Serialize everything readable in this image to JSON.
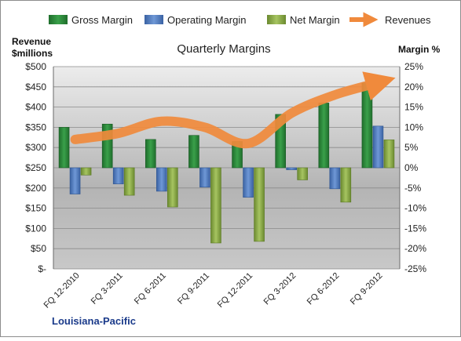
{
  "chart_data": {
    "type": "bar",
    "title": "Quarterly Margins",
    "company": "Louisiana-Pacific",
    "left_axis_label_line1": "Revenue",
    "left_axis_label_line2": "$millions",
    "right_axis_label": "Margin %",
    "categories": [
      "FQ 12-2010",
      "FQ 3-2011",
      "FQ 6-2011",
      "FQ 9-2011",
      "FQ 12-2011",
      "FQ 3-2012",
      "FQ 6-2012",
      "FQ 9-2012"
    ],
    "left_ylim": [
      0,
      500
    ],
    "right_ylim": [
      -25,
      25
    ],
    "left_ticks": [
      "$-",
      "$50",
      "$100",
      "$150",
      "$200",
      "$250",
      "$300",
      "$350",
      "$400",
      "$450",
      "$500"
    ],
    "right_ticks": [
      "-25%",
      "-20%",
      "-15%",
      "-10%",
      "-5%",
      "0%",
      "5%",
      "10%",
      "15%",
      "20%",
      "25%"
    ],
    "series": [
      {
        "name": "Gross Margin",
        "axis": "right",
        "color": "#2e8b3e",
        "values": [
          10,
          10.8,
          7,
          8,
          6.5,
          13.2,
          16,
          21
        ]
      },
      {
        "name": "Operating Margin",
        "axis": "right",
        "color": "#4f7bbf",
        "values": [
          -6.5,
          -4,
          -5.8,
          -4.8,
          -7.3,
          -0.5,
          -5.2,
          10.3
        ]
      },
      {
        "name": "Net Margin",
        "axis": "right",
        "color": "#8faf4a",
        "values": [
          -1.8,
          -6.8,
          -9.7,
          -18.6,
          -18.2,
          -3,
          -8.5,
          6.9
        ]
      }
    ],
    "revenues": {
      "name": "Revenues",
      "color": "#f08a3c",
      "values": [
        320,
        335,
        365,
        350,
        310,
        385,
        430,
        460
      ]
    },
    "legend_position": "top",
    "grid": true
  }
}
